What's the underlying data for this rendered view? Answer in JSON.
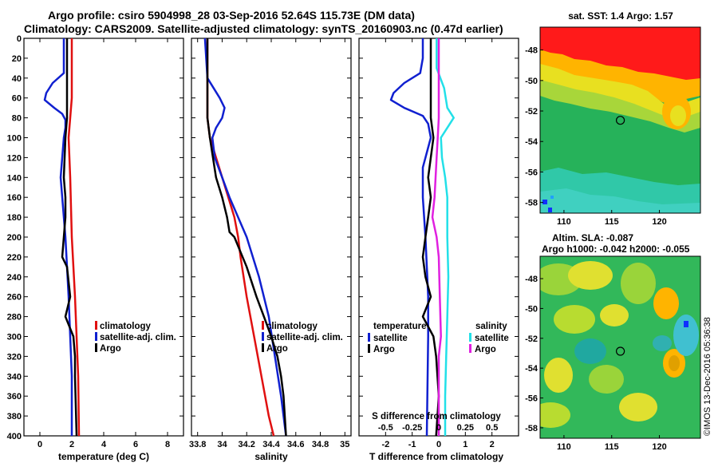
{
  "header": {
    "line1": "Argo profile: csiro 5904998_28 03-Sep-2016 52.64S 115.73E (DM data)",
    "line2": "Climatology: CARS2009. Satellite-adjusted climatology: synTS_20160903.nc (0.47d earlier)"
  },
  "colors": {
    "climatology": "#e01010",
    "satellite": "#1020d0",
    "argo": "#000000",
    "sal_sat": "#22e0e8",
    "sal_argo": "#e020e0"
  },
  "depth_axis": {
    "ticks": [
      0,
      20,
      40,
      60,
      80,
      100,
      120,
      140,
      160,
      180,
      200,
      220,
      240,
      260,
      280,
      300,
      320,
      340,
      360,
      380,
      400
    ],
    "labels": [
      "0",
      "20",
      "40",
      "60",
      "80",
      "100",
      "120",
      "140",
      "160",
      "180",
      "200",
      "220",
      "240",
      "260",
      "280",
      "300",
      "320",
      "340",
      "360",
      "380",
      "400"
    ]
  },
  "chart_data": [
    {
      "type": "line",
      "id": "temperature",
      "xlabel": "temperature (deg C)",
      "xlim": [
        -1,
        9
      ],
      "ylim": [
        0,
        400
      ],
      "xticks": [
        0,
        2,
        4,
        6,
        8
      ],
      "xticklabels": [
        "0",
        "2",
        "4",
        "6",
        "8"
      ],
      "legend": [
        "climatology",
        "satellite-adj. clim.",
        "Argo"
      ],
      "series": [
        {
          "name": "climatology",
          "depth": [
            0,
            60,
            80,
            100,
            140,
            200,
            260,
            300,
            340,
            400
          ],
          "values": [
            2.0,
            2.0,
            1.9,
            1.8,
            1.9,
            2.0,
            2.2,
            2.3,
            2.4,
            2.45
          ]
        },
        {
          "name": "satellite-adj. clim.",
          "depth": [
            0,
            20,
            35,
            45,
            55,
            62,
            70,
            76,
            82,
            90,
            100,
            140,
            160,
            200,
            260,
            300,
            340,
            400
          ],
          "values": [
            1.5,
            1.5,
            1.5,
            0.8,
            0.4,
            0.3,
            0.9,
            1.4,
            1.6,
            1.6,
            1.5,
            1.3,
            1.4,
            1.6,
            1.8,
            1.9,
            2.0,
            2.0
          ]
        },
        {
          "name": "Argo",
          "depth": [
            0,
            40,
            60,
            80,
            100,
            140,
            160,
            180,
            200,
            220,
            230,
            260,
            280,
            300,
            320,
            340,
            400
          ],
          "values": [
            1.7,
            1.7,
            1.7,
            1.7,
            1.6,
            1.5,
            1.6,
            1.6,
            1.5,
            1.4,
            1.7,
            1.9,
            1.6,
            2.1,
            2.2,
            2.2,
            2.3
          ]
        }
      ]
    },
    {
      "type": "line",
      "id": "salinity",
      "xlabel": "salinity",
      "xlim": [
        33.75,
        35.05
      ],
      "ylim": [
        0,
        400
      ],
      "xticks": [
        33.8,
        34,
        34.2,
        34.4,
        34.6,
        34.8,
        35
      ],
      "xticklabels": [
        "33.8",
        "34",
        "34.2",
        "34.4",
        "34.6",
        "34.8",
        "35"
      ],
      "legend": [
        "climatology",
        "satellite-adj. clim.",
        "Argo"
      ],
      "series": [
        {
          "name": "climatology",
          "depth": [
            0,
            80,
            100,
            120,
            140,
            160,
            180,
            200,
            220,
            260,
            300,
            340,
            380,
            400
          ],
          "values": [
            33.88,
            33.88,
            33.9,
            33.95,
            34.0,
            34.05,
            34.1,
            34.13,
            34.15,
            34.2,
            34.26,
            34.32,
            34.38,
            34.42
          ]
        },
        {
          "name": "satellite-adj. clim.",
          "depth": [
            0,
            40,
            60,
            70,
            80,
            90,
            100,
            120,
            140,
            160,
            200,
            240,
            280,
            320,
            360,
            400
          ],
          "values": [
            33.86,
            33.88,
            33.98,
            34.02,
            34.0,
            33.95,
            33.92,
            33.94,
            34.0,
            34.06,
            34.2,
            34.3,
            34.38,
            34.43,
            34.48,
            34.52
          ]
        },
        {
          "name": "Argo",
          "depth": [
            0,
            60,
            80,
            100,
            140,
            160,
            180,
            195,
            200,
            215,
            230,
            260,
            280,
            300,
            320,
            340,
            360,
            400
          ],
          "values": [
            33.88,
            33.88,
            33.88,
            33.9,
            33.95,
            34.0,
            34.04,
            34.06,
            34.1,
            34.15,
            34.2,
            34.28,
            34.34,
            34.4,
            34.45,
            34.48,
            34.5,
            34.52
          ]
        }
      ]
    },
    {
      "type": "line",
      "id": "difference",
      "xlabel": "T difference from climatology",
      "top_label": "S difference from climatology",
      "xlim": [
        -3,
        3
      ],
      "ylim": [
        0,
        400
      ],
      "xticks": [
        -2,
        -1,
        0,
        1,
        2
      ],
      "xticklabels": [
        "-2",
        "-1",
        "0",
        "1",
        "2"
      ],
      "top_ticks": [
        -0.5,
        -0.25,
        0,
        0.25,
        0.5
      ],
      "top_ticklabels": [
        "-0.5",
        "-0.25",
        "0",
        "0.25",
        "0.5"
      ],
      "legend_t_title": "temperature",
      "legend_s_title": "salinity",
      "legend_t": [
        "satellite",
        "Argo"
      ],
      "legend_s": [
        "satellite",
        "Argo"
      ],
      "series": [
        {
          "name": "T satellite",
          "depth": [
            0,
            20,
            35,
            45,
            55,
            62,
            70,
            78,
            86,
            100,
            130,
            160,
            200,
            260,
            300,
            400
          ],
          "values": [
            -0.6,
            -0.6,
            -0.7,
            -1.3,
            -1.7,
            -1.8,
            -1.3,
            -0.6,
            -0.4,
            -0.3,
            -0.6,
            -0.6,
            -0.5,
            -0.4,
            -0.4,
            -0.45
          ]
        },
        {
          "name": "T Argo",
          "depth": [
            0,
            80,
            100,
            140,
            160,
            180,
            200,
            220,
            240,
            260,
            280,
            300,
            320,
            360,
            400
          ],
          "values": [
            -0.3,
            -0.3,
            -0.2,
            -0.4,
            -0.3,
            -0.4,
            -0.5,
            -0.6,
            -0.5,
            -0.3,
            -0.6,
            -0.2,
            -0.1,
            0.0,
            -0.1
          ]
        },
        {
          "name": "S satellite",
          "depth": [
            0,
            30,
            50,
            70,
            80,
            90,
            100,
            120,
            140,
            160,
            200,
            240,
            280,
            320,
            360,
            400
          ],
          "values": [
            -0.02,
            -0.02,
            0.05,
            0.08,
            0.14,
            0.08,
            0.02,
            0.03,
            0.06,
            0.08,
            0.08,
            0.09,
            0.08,
            0.07,
            0.06,
            0.06
          ]
        },
        {
          "name": "S Argo",
          "depth": [
            0,
            80,
            100,
            120,
            140,
            160,
            180,
            200,
            220,
            260,
            300,
            320,
            340,
            400
          ],
          "values": [
            0.0,
            0.0,
            -0.01,
            -0.02,
            -0.03,
            -0.04,
            -0.06,
            -0.02,
            0.0,
            0.01,
            0.02,
            0.0,
            0.0,
            0.0
          ]
        }
      ]
    },
    {
      "type": "heatmap",
      "id": "sst_map",
      "title": "sat. SST: 1.4 Argo: 1.57",
      "xticks": [
        110,
        115,
        120
      ],
      "xticklabels": [
        "110",
        "115",
        "120"
      ],
      "yticks": [
        -48,
        -50,
        -52,
        -54,
        -56,
        -58
      ],
      "yticklabels": [
        "-48",
        "-50",
        "-52",
        "-54",
        "-56",
        "-58"
      ],
      "xlim": [
        107.5,
        124.3
      ],
      "ylim": [
        -58.7,
        -46.5
      ],
      "marker": {
        "lon": 115.73,
        "lat": -52.64
      }
    },
    {
      "type": "heatmap",
      "id": "sla_map",
      "title1": "Altim. SLA: -0.087",
      "title2": "Argo h1000: -0.042 h2000: -0.055",
      "xticks": [
        110,
        115,
        120
      ],
      "xticklabels": [
        "110",
        "115",
        "120"
      ],
      "yticks": [
        -48,
        -50,
        -52,
        -54,
        -56,
        -58
      ],
      "yticklabels": [
        "-48",
        "-50",
        "-52",
        "-54",
        "-56",
        "-58"
      ],
      "xlim": [
        107.5,
        124.3
      ],
      "ylim": [
        -58.7,
        -46.5
      ],
      "marker": {
        "lon": 115.73,
        "lat": -52.64
      }
    }
  ],
  "credit": "©IMOS 13-Dec-2016 05:36:38"
}
